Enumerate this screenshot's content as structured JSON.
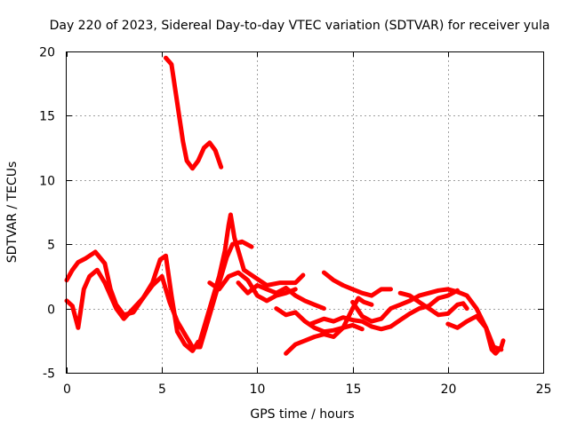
{
  "chart_data": {
    "type": "scatter",
    "title": "Day 220 of 2023, Sidereal Day-to-day VTEC variation (SDTVAR) for receiver yula",
    "xlabel": "GPS time / hours",
    "ylabel": "SDTVAR / TECUs",
    "xlim": [
      0,
      25
    ],
    "ylim": [
      -5,
      20
    ],
    "xticks": [
      "0",
      "5",
      "10",
      "15",
      "20",
      "25"
    ],
    "yticks": [
      "-5",
      "0",
      "5",
      "10",
      "15",
      "20"
    ],
    "grid": true,
    "marker_color": "#ff0000",
    "series": [
      {
        "name": "trace-1",
        "points": [
          [
            5.2,
            19.5
          ],
          [
            5.5,
            19.0
          ],
          [
            5.7,
            17.0
          ],
          [
            5.9,
            15.0
          ],
          [
            6.1,
            13.0
          ],
          [
            6.3,
            11.5
          ],
          [
            6.6,
            10.9
          ],
          [
            6.9,
            11.5
          ],
          [
            7.2,
            12.5
          ],
          [
            7.5,
            12.9
          ],
          [
            7.8,
            12.3
          ],
          [
            8.1,
            11.0
          ]
        ]
      },
      {
        "name": "trace-2",
        "points": [
          [
            0,
            2.2
          ],
          [
            0.3,
            3.0
          ],
          [
            0.6,
            3.6
          ],
          [
            1.0,
            3.9
          ],
          [
            1.5,
            4.4
          ],
          [
            2.0,
            3.5
          ],
          [
            2.3,
            1.5
          ],
          [
            2.6,
            0.3
          ],
          [
            3.0,
            -0.5
          ],
          [
            3.5,
            -0.3
          ],
          [
            4.0,
            0.8
          ],
          [
            4.5,
            2.0
          ],
          [
            4.9,
            3.8
          ],
          [
            5.2,
            4.1
          ],
          [
            5.5,
            1.0
          ],
          [
            5.8,
            -1.8
          ],
          [
            6.2,
            -2.8
          ],
          [
            6.6,
            -3.3
          ],
          [
            6.9,
            -2.6
          ]
        ]
      },
      {
        "name": "trace-3",
        "points": [
          [
            0,
            0.6
          ],
          [
            0.3,
            0.2
          ],
          [
            0.6,
            -1.5
          ],
          [
            0.9,
            1.5
          ],
          [
            1.2,
            2.5
          ],
          [
            1.6,
            3.0
          ],
          [
            2.0,
            2.0
          ],
          [
            2.3,
            1.0
          ],
          [
            2.6,
            0
          ],
          [
            3.0,
            -0.8
          ],
          [
            3.5,
            0
          ],
          [
            4.0,
            0.8
          ],
          [
            4.5,
            1.8
          ],
          [
            5.0,
            2.5
          ],
          [
            5.4,
            0.5
          ],
          [
            5.8,
            -1.0
          ],
          [
            6.2,
            -2.0
          ],
          [
            6.6,
            -3.0
          ],
          [
            7.0,
            -3.0
          ],
          [
            7.4,
            -1.0
          ],
          [
            7.8,
            1.0
          ],
          [
            8.1,
            2.5
          ],
          [
            8.4,
            4.0
          ],
          [
            8.7,
            5.0
          ],
          [
            9.2,
            5.2
          ],
          [
            9.7,
            4.8
          ]
        ]
      },
      {
        "name": "trace-4",
        "points": [
          [
            7.0,
            -2.5
          ],
          [
            7.5,
            0
          ],
          [
            8.0,
            2.5
          ],
          [
            8.3,
            4.5
          ],
          [
            8.5,
            6.5
          ],
          [
            8.6,
            7.3
          ],
          [
            8.8,
            5.5
          ],
          [
            9.0,
            4.5
          ],
          [
            9.3,
            3.0
          ],
          [
            9.8,
            2.5
          ],
          [
            10.5,
            1.8
          ],
          [
            11.2,
            2.0
          ],
          [
            12.0,
            2.0
          ],
          [
            12.4,
            2.6
          ]
        ]
      },
      {
        "name": "trace-5",
        "points": [
          [
            7.5,
            2.0
          ],
          [
            8.0,
            1.5
          ],
          [
            8.5,
            2.5
          ],
          [
            9.0,
            2.8
          ],
          [
            9.5,
            2.2
          ],
          [
            10.0,
            1.0
          ],
          [
            10.5,
            0.6
          ],
          [
            11.0,
            1.0
          ],
          [
            11.5,
            1.2
          ],
          [
            12.0,
            1.5
          ]
        ]
      },
      {
        "name": "trace-6",
        "points": [
          [
            9.0,
            2.0
          ],
          [
            9.5,
            1.2
          ],
          [
            10.0,
            1.8
          ],
          [
            10.5,
            1.5
          ],
          [
            11.0,
            1.2
          ],
          [
            11.5,
            1.6
          ],
          [
            12.0,
            1.0
          ],
          [
            12.5,
            0.6
          ],
          [
            13.0,
            0.3
          ],
          [
            13.5,
            0
          ]
        ]
      },
      {
        "name": "trace-7",
        "points": [
          [
            11.0,
            0
          ],
          [
            11.5,
            -0.5
          ],
          [
            12.0,
            -0.3
          ],
          [
            12.5,
            -1.0
          ],
          [
            13.0,
            -1.5
          ],
          [
            13.5,
            -1.8
          ],
          [
            14.0,
            -1.7
          ],
          [
            14.5,
            -1.5
          ],
          [
            15.0,
            -1.3
          ],
          [
            15.5,
            -1.6
          ]
        ]
      },
      {
        "name": "trace-8",
        "points": [
          [
            11.5,
            -3.5
          ],
          [
            12.0,
            -2.8
          ],
          [
            12.5,
            -2.5
          ],
          [
            13.0,
            -2.2
          ],
          [
            13.5,
            -2.0
          ],
          [
            14.0,
            -2.2
          ],
          [
            14.5,
            -1.5
          ],
          [
            15.0,
            0
          ],
          [
            15.3,
            0.8
          ],
          [
            15.6,
            0.5
          ],
          [
            16.0,
            0.3
          ]
        ]
      },
      {
        "name": "trace-9",
        "points": [
          [
            13.5,
            2.8
          ],
          [
            14.0,
            2.2
          ],
          [
            14.5,
            1.8
          ],
          [
            15.0,
            1.5
          ],
          [
            15.5,
            1.2
          ],
          [
            16.0,
            1.0
          ],
          [
            16.5,
            1.5
          ],
          [
            17.0,
            1.5
          ]
        ]
      },
      {
        "name": "trace-10",
        "points": [
          [
            12.8,
            -1.2
          ],
          [
            13.5,
            -0.8
          ],
          [
            14.0,
            -1.0
          ],
          [
            14.5,
            -0.7
          ],
          [
            15.0,
            -0.9
          ],
          [
            15.5,
            -1.0
          ],
          [
            16.0,
            -1.4
          ],
          [
            16.5,
            -1.6
          ],
          [
            17.0,
            -1.4
          ],
          [
            17.5,
            -0.9
          ],
          [
            18.0,
            -0.4
          ],
          [
            18.5,
            0
          ],
          [
            19.0,
            0.2
          ],
          [
            19.5,
            0.8
          ],
          [
            20.0,
            1.0
          ],
          [
            20.5,
            1.4
          ]
        ]
      },
      {
        "name": "trace-11",
        "points": [
          [
            15.0,
            0.5
          ],
          [
            15.5,
            -0.6
          ],
          [
            16.0,
            -1.0
          ],
          [
            16.5,
            -0.8
          ],
          [
            17.0,
            0
          ],
          [
            17.5,
            0.3
          ],
          [
            18.0,
            0.6
          ],
          [
            18.5,
            1.0
          ],
          [
            19.0,
            1.2
          ],
          [
            19.5,
            1.4
          ],
          [
            20.0,
            1.5
          ],
          [
            20.5,
            1.3
          ],
          [
            21.0,
            1.0
          ],
          [
            21.5,
            0
          ],
          [
            22.0,
            -1.5
          ],
          [
            22.4,
            -3.0
          ],
          [
            22.8,
            -3.2
          ]
        ]
      },
      {
        "name": "trace-12",
        "points": [
          [
            17.5,
            1.2
          ],
          [
            18.0,
            1.0
          ],
          [
            18.5,
            0.5
          ],
          [
            19.0,
            0
          ],
          [
            19.5,
            -0.5
          ],
          [
            20.0,
            -0.4
          ],
          [
            20.5,
            0.3
          ],
          [
            20.8,
            0.4
          ],
          [
            21.0,
            0
          ]
        ]
      },
      {
        "name": "trace-13",
        "points": [
          [
            20.0,
            -1.2
          ],
          [
            20.5,
            -1.5
          ],
          [
            21.0,
            -1.0
          ],
          [
            21.5,
            -0.6
          ],
          [
            22.0,
            -1.5
          ],
          [
            22.3,
            -3.2
          ],
          [
            22.5,
            -3.5
          ],
          [
            22.8,
            -3.0
          ],
          [
            22.9,
            -2.5
          ]
        ]
      }
    ]
  }
}
